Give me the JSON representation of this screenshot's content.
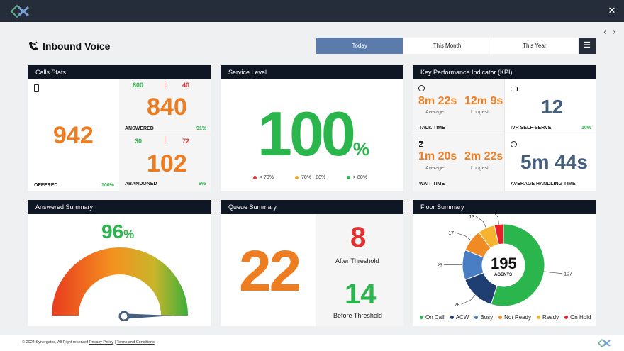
{
  "colors": {
    "accent": "#5b7baa",
    "header": "#262d3a",
    "orange": "#ee7d22",
    "green": "#2bb54d",
    "red": "#e23030",
    "blue": "#45607f"
  },
  "page": {
    "title": "Inbound Voice"
  },
  "tabs": [
    {
      "label": "Today",
      "active": true
    },
    {
      "label": "This Month",
      "active": false
    },
    {
      "label": "This Year",
      "active": false
    }
  ],
  "calls_stats": {
    "title": "Calls Stats",
    "offered": {
      "value": "942",
      "label": "OFFERED",
      "pct": "100%"
    },
    "answered": {
      "value": "840",
      "left": "800",
      "right": "40",
      "label": "ANSWERED",
      "pct": "91%"
    },
    "abandoned": {
      "value": "102",
      "left": "30",
      "right": "72",
      "label": "ABANDONED",
      "pct": "9%"
    }
  },
  "service_level": {
    "title": "Service Level",
    "value": "100",
    "unit": "%",
    "legend": [
      "< 70%",
      "70% - 80%",
      "> 80%"
    ]
  },
  "kpi": {
    "title": "Key Performance Indicator (KPI)",
    "talk_time": {
      "avg": "8m 22s",
      "avg_label": "Average",
      "long": "12m 9s",
      "long_label": "Longest",
      "label": "TALK TIME"
    },
    "ivr": {
      "value": "12",
      "label": "IVR SELF-SERVE",
      "pct": "10%"
    },
    "wait_time": {
      "avg": "1m 20s",
      "avg_label": "Average",
      "long": "2m 22s",
      "long_label": "Longest",
      "label": "WAIT TIME"
    },
    "aht": {
      "value": "5m 44s",
      "label": "AVERAGE HANDLING TIME"
    }
  },
  "answered_summary": {
    "title": "Answered Summary",
    "value": "96",
    "unit": "%",
    "gauge_fraction": 0.96
  },
  "queue_summary": {
    "title": "Queue Summary",
    "total": "22",
    "after": {
      "value": "8",
      "label": "After Threshold"
    },
    "before": {
      "value": "14",
      "label": "Before Threshold"
    }
  },
  "floor_summary": {
    "title": "Floor Summary",
    "total": "195",
    "total_label": "AGENTS",
    "chart_data": {
      "type": "pie",
      "series": [
        {
          "name": "On Call",
          "value": 107,
          "color": "#2bb54d"
        },
        {
          "name": "ACW",
          "value": 28,
          "color": "#1f3f73"
        },
        {
          "name": "Busy",
          "value": 23,
          "color": "#4a7ec4"
        },
        {
          "name": "Not Ready",
          "value": 17,
          "color": "#f08a24"
        },
        {
          "name": "Ready",
          "value": 13,
          "color": "#f5b330"
        },
        {
          "name": "On Hold",
          "value": 7,
          "color": "#e5202a"
        }
      ]
    }
  },
  "footer": {
    "copyright": "© 2024 Synergates, All Right reserved",
    "privacy": "Privacy Policy",
    "terms": "Terms and Conditions",
    "sep": "|"
  }
}
